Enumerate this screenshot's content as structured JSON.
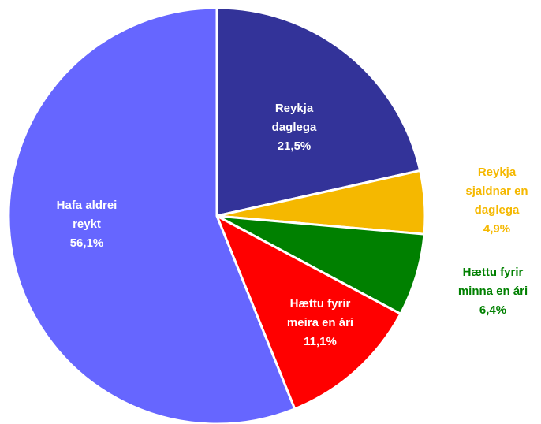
{
  "chart_data": {
    "type": "pie",
    "categories": [
      "Reykja daglega",
      "Reykja sjaldnar en daglega",
      "Hættu fyrir minna en ári",
      "Hættu fyrir meira en ári",
      "Hafa aldrei reykt"
    ],
    "values": [
      21.5,
      4.9,
      6.4,
      11.1,
      56.1
    ],
    "value_labels": [
      "21,5%",
      "4,9%",
      "6,4%",
      "11,1%",
      "56,1%"
    ],
    "colors": [
      "#333399",
      "#f5b800",
      "#008000",
      "#ff0000",
      "#6666ff"
    ]
  }
}
